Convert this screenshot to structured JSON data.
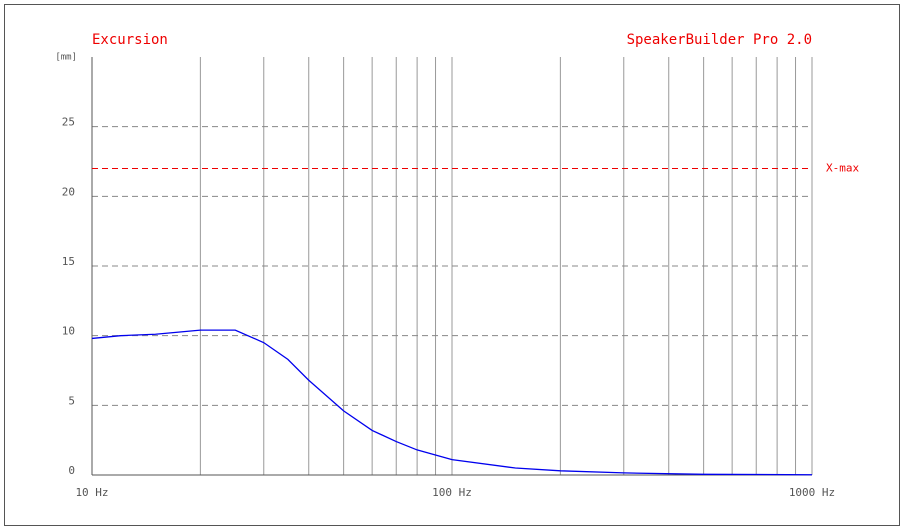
{
  "chart_data": {
    "type": "line",
    "title": "Excursion",
    "subtitle": "SpeakerBuilder Pro 2.0",
    "y_label": "[mm]",
    "x_scale": "log",
    "x": [
      10,
      12,
      15,
      20,
      25,
      30,
      35,
      40,
      50,
      60,
      70,
      80,
      100,
      150,
      200,
      300,
      500,
      1000
    ],
    "series": [
      {
        "name": "Excursion",
        "color": "#0000ee",
        "values": [
          9.8,
          10.0,
          10.1,
          10.4,
          10.4,
          9.5,
          8.3,
          6.8,
          4.6,
          3.2,
          2.4,
          1.8,
          1.1,
          0.5,
          0.3,
          0.15,
          0.05,
          0.02
        ]
      }
    ],
    "xlim": [
      10,
      1000
    ],
    "xticks": [
      {
        "value": 10,
        "label": "10 Hz"
      },
      {
        "value": 100,
        "label": "100 Hz"
      },
      {
        "value": 1000,
        "label": "1000 Hz"
      }
    ],
    "xgrid": [
      20,
      30,
      40,
      50,
      60,
      70,
      80,
      90,
      200,
      300,
      400,
      500,
      600,
      700,
      800,
      900
    ],
    "ylim": [
      0,
      30
    ],
    "yticks": [
      0,
      5,
      10,
      15,
      20,
      25
    ],
    "grid": true,
    "annotations": [
      {
        "label": "X-max",
        "value": 22,
        "color": "#ee0000"
      }
    ],
    "text_color": "#ee0000"
  }
}
